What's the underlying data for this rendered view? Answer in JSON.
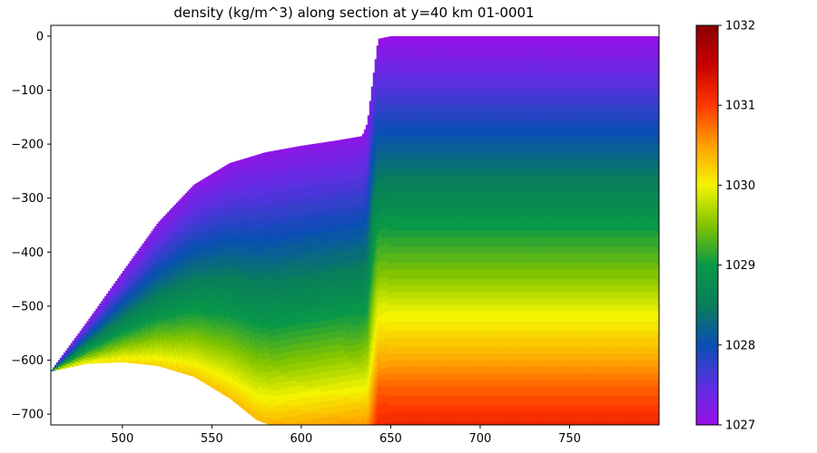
{
  "chart_data": {
    "type": "heatmap",
    "title": "density (kg/m^3) along section at y=40 km 01-0001",
    "xlabel": "",
    "ylabel": "",
    "xlim": [
      460,
      800
    ],
    "ylim": [
      -720,
      20
    ],
    "x_ticks": [
      "500",
      "550",
      "600",
      "650",
      "700",
      "750"
    ],
    "x_tick_values": [
      500,
      550,
      600,
      650,
      700,
      750
    ],
    "y_ticks": [
      "0",
      "−100",
      "−200",
      "−300",
      "−400",
      "−500",
      "−600",
      "−700"
    ],
    "y_tick_values": [
      0,
      -100,
      -200,
      -300,
      -400,
      -500,
      -600,
      -700
    ],
    "colorbar": {
      "vmin": 1027,
      "vmax": 1032,
      "ticks": [
        "1027",
        "1028",
        "1029",
        "1030",
        "1031",
        "1032"
      ],
      "tick_values": [
        1027,
        1028,
        1029,
        1030,
        1031,
        1032
      ],
      "colors": [
        "#9a10e8",
        "#5a30e0",
        "#0a4fb4",
        "#087e5a",
        "#089848",
        "#82c400",
        "#f4f400",
        "#ffa000",
        "#ff3800",
        "#c80000",
        "#8b0000"
      ]
    },
    "surface_profile": {
      "x": [
        460,
        470,
        480,
        500,
        520,
        540,
        560,
        580,
        600,
        620,
        634,
        637,
        640,
        643,
        650,
        700,
        800
      ],
      "z": [
        -620,
        -575,
        -530,
        -437,
        -345,
        -275,
        -235,
        -215,
        -203,
        -193,
        -185,
        -160,
        -80,
        -5,
        0,
        0,
        0
      ]
    },
    "bottom_profile": {
      "x": [
        460,
        480,
        500,
        520,
        540,
        560,
        575,
        583,
        640,
        800
      ],
      "z": [
        -620,
        -606,
        -603,
        -610,
        -630,
        -670,
        -710,
        -720,
        -720,
        -720
      ]
    },
    "left_domain": {
      "x_max": 639,
      "surface_density": 1027.1,
      "surface_vertical_gradient": 0.011,
      "min_density_at_bottom": 1030.05,
      "max_density": 1030.55
    },
    "right_domain": {
      "x_min": 642,
      "z": [
        0,
        -50,
        -150,
        -250,
        -350,
        -450,
        -500,
        -550,
        -600,
        -650,
        -700,
        -720
      ],
      "density": [
        1027.0,
        1027.3,
        1027.85,
        1028.4,
        1029.0,
        1029.55,
        1029.9,
        1030.15,
        1030.45,
        1030.8,
        1031.05,
        1031.15
      ]
    },
    "front_center_x": 640,
    "front_half_width": 3,
    "contour_levels": 60
  }
}
